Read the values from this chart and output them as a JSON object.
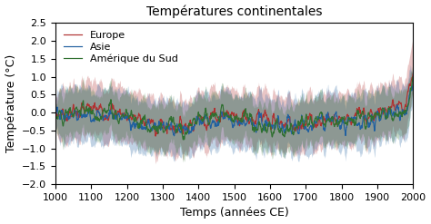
{
  "title": "Températures continentales",
  "xlabel": "Temps (années CE)",
  "ylabel": "Température (°C)",
  "xlim": [
    1000,
    2000
  ],
  "ylim": [
    -2,
    2.5
  ],
  "yticks": [
    -2,
    -1.5,
    -1,
    -0.5,
    0,
    0.5,
    1,
    1.5,
    2,
    2.5
  ],
  "xticks": [
    1000,
    1100,
    1200,
    1300,
    1400,
    1500,
    1600,
    1700,
    1800,
    1900,
    2000
  ],
  "regions": [
    "Europe",
    "Asie",
    "Amérique du Sud"
  ],
  "colors": {
    "Europe": "#b03030",
    "Asie": "#2060a0",
    "Amérique du Sud": "#307030"
  },
  "alpha_fill": 0.28,
  "background_color": "#ffffff",
  "figsize": [
    4.74,
    2.47
  ],
  "dpi": 100
}
